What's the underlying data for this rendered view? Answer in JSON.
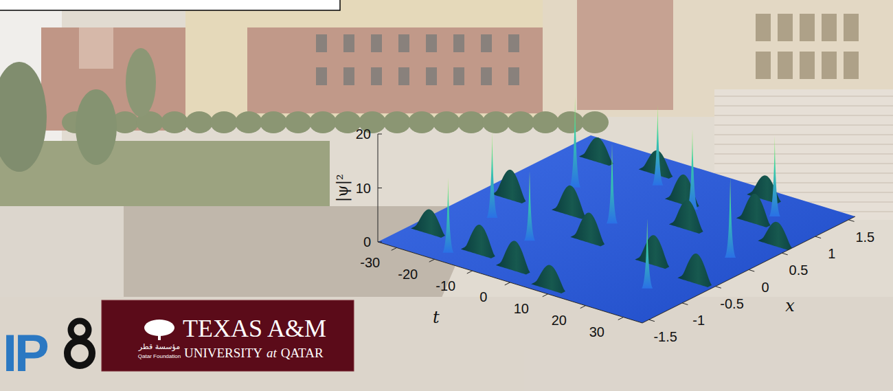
{
  "banner": {
    "left_logo": "IP",
    "institution": {
      "name": "TEXAS A&M",
      "university": "UNIVERSITY",
      "at": "at",
      "qatar": "QATAR",
      "foundation_arabic": "مؤسسة قطر",
      "foundation": "Qatar Foundation"
    }
  },
  "chart_data": {
    "type": "surface",
    "zlabel": "|ψ|²",
    "ylabel": "t",
    "xlabel": "x",
    "color": "#2257e0",
    "grid": false,
    "xlim": [
      -1.6,
      1.6
    ],
    "ylim": [
      -35,
      35
    ],
    "zlim": [
      0,
      20
    ],
    "xticks": [
      -1.5,
      -1,
      -0.5,
      0,
      0.5,
      1,
      1.5
    ],
    "yticks": [
      -30,
      -20,
      -10,
      0,
      10,
      20,
      30
    ],
    "zticks": [
      0,
      10,
      20
    ],
    "peaks": {
      "t": [
        -19.9,
        -24.1,
        -10.5,
        -20.5,
        -2.6,
        -7.6,
        6.0,
        28.0,
        21.8,
        24.5
      ],
      "x": [
        -1.4,
        -0.5,
        -0.71,
        0.54,
        0.08,
        1.05,
        0.8,
        0.12,
        1.14,
        -0.93
      ],
      "values": [
        14,
        16,
        13,
        17,
        15,
        15,
        15,
        15,
        15,
        13
      ]
    },
    "ridges": {
      "t": [
        -30,
        -28,
        -26,
        -15,
        -13,
        -12,
        -4,
        -1,
        2,
        8,
        11,
        14,
        17,
        20,
        30,
        31
      ],
      "x": [
        -1.1,
        0.0,
        1.2,
        -1.2,
        0.05,
        1.3,
        -1.3,
        -0.35,
        0.9,
        -1.45,
        0.45,
        1.45,
        -0.4,
        0.95,
        -0.5,
        0.65
      ],
      "values": [
        4,
        5,
        4,
        5,
        5,
        4,
        5,
        5,
        5,
        4,
        5,
        4,
        5,
        5,
        5,
        4
      ]
    }
  }
}
